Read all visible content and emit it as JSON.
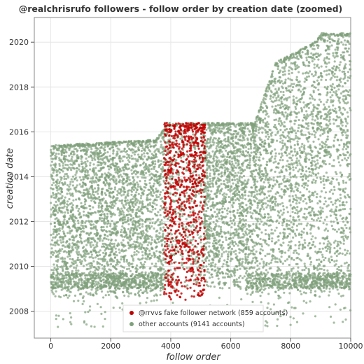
{
  "chart_data": {
    "type": "scatter",
    "title": "@realchrisrufo followers - follow order by creation date (zoomed)",
    "xlabel": "follow order",
    "ylabel": "creation date",
    "xlim": [
      -550,
      10000
    ],
    "ylim": [
      2006.8,
      2021.1
    ],
    "x_ticks": [
      0,
      2000,
      4000,
      6000,
      8000,
      10000
    ],
    "y_ticks": [
      2008,
      2010,
      2012,
      2014,
      2016,
      2018,
      2020
    ],
    "grid": true,
    "legend_position": "bottom-center",
    "series": [
      {
        "name": "@rrvvs fake follower network (859 accounts)",
        "color": "#c00000",
        "count": 859,
        "x_range": [
          3780,
          5150
        ],
        "y_range": [
          2008.5,
          2016.4
        ],
        "dense_band": [
          2013.5,
          2016.4
        ]
      },
      {
        "name": "other accounts (9141 accounts)",
        "color": "#7fa07b",
        "count": 9141,
        "clusters": [
          {
            "x_range": [
              0,
              3800
            ],
            "y_range": [
              2008.6,
              2015.5
            ],
            "dense_band": [
              2009,
              2009.7
            ]
          },
          {
            "x_range": [
              3800,
              6500
            ],
            "y_range": [
              2009,
              2016.3
            ]
          },
          {
            "x_range": [
              6500,
              10000
            ],
            "y_range": [
              2008.6,
              2016.5
            ],
            "dense_band": [
              2009,
              2009.7
            ]
          },
          {
            "x_range": [
              7000,
              10000
            ],
            "y_range": [
              2016.5,
              2020.4
            ]
          }
        ]
      }
    ]
  }
}
